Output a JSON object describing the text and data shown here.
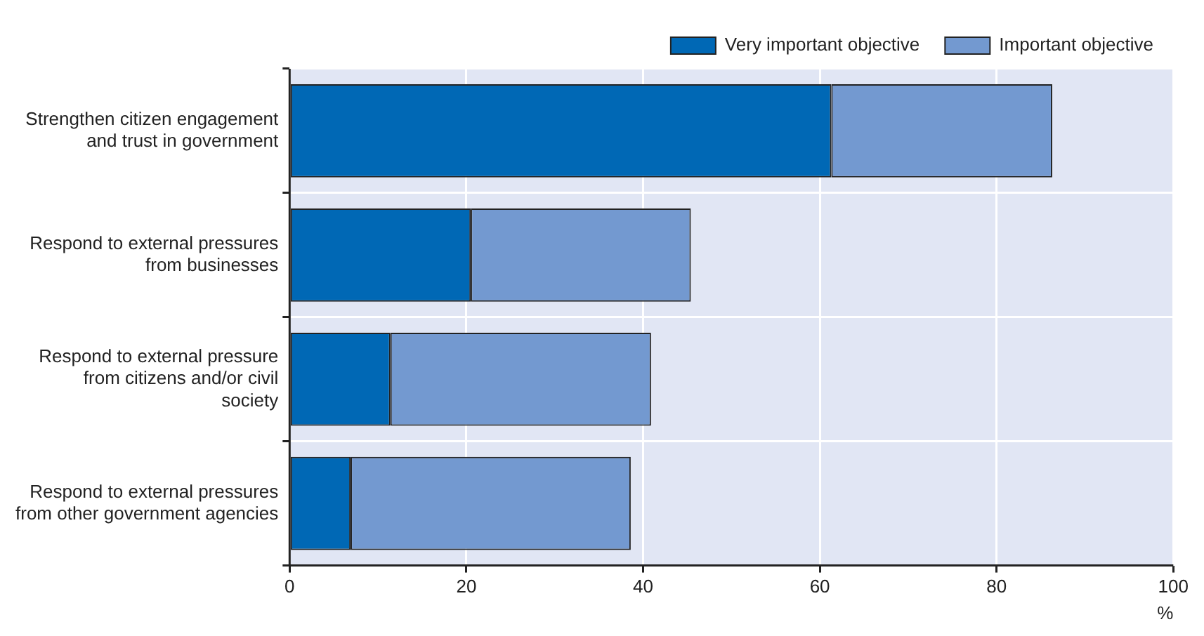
{
  "chart_data": {
    "type": "bar",
    "orientation": "horizontal",
    "stacked": true,
    "xlabel": "%",
    "categories": [
      "Strengthen citizen engagement and trust in government",
      "Respond to external pressures from businesses",
      "Respond to external pressure from citizens and/or civil society",
      "Respond to external pressures from other government agencies"
    ],
    "series": [
      {
        "name": "Very important objective",
        "color": "#0068b5",
        "values": [
          61.3,
          20.5,
          11.4,
          6.9
        ]
      },
      {
        "name": "Important objective",
        "color": "#7399d0",
        "values": [
          25.0,
          24.9,
          29.5,
          31.7
        ]
      }
    ],
    "xlim": [
      0,
      100
    ],
    "xticks": [
      0,
      20,
      40,
      60,
      80,
      100
    ],
    "grid": true,
    "legend": "top"
  }
}
